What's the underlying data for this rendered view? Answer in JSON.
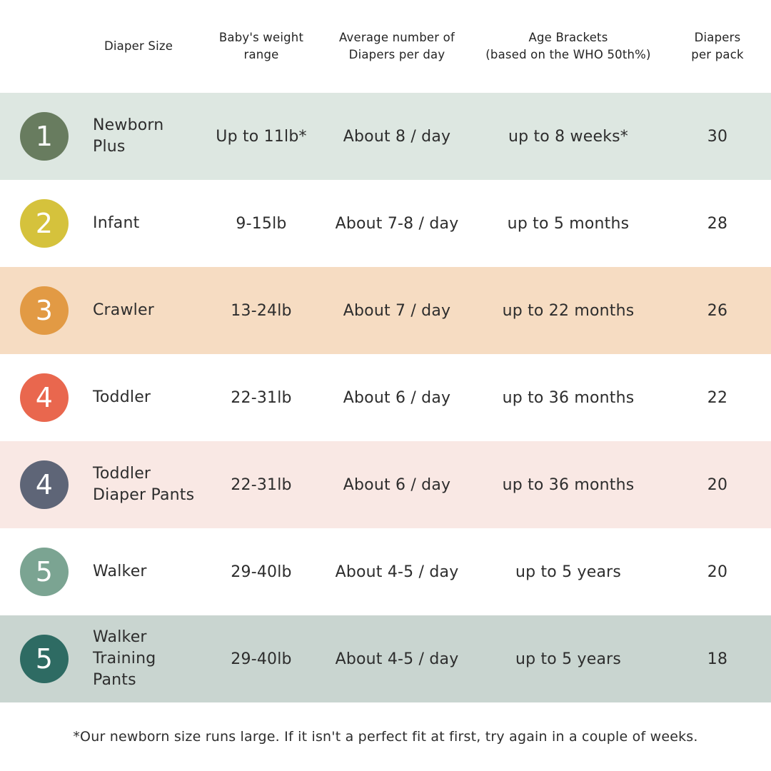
{
  "table": {
    "headers": [
      "Diaper Size",
      "Baby's weight\nrange",
      "Average number of\nDiapers per day",
      "Age Brackets\n(based on the WHO 50th%)",
      "Diapers\nper pack"
    ],
    "rows": [
      {
        "size": "1",
        "circle_color": "#687c5f",
        "row_bg": "#dde7e1",
        "name": "Newborn Plus",
        "weight": "Up to 11lb*",
        "per_day": "About 8 / day",
        "age": "up to 8 weeks*",
        "per_pack": "30"
      },
      {
        "size": "2",
        "circle_color": "#d5c23c",
        "row_bg": "#ffffff",
        "name": "Infant",
        "weight": "9-15lb",
        "per_day": "About 7-8 / day",
        "age": "up to 5 months",
        "per_pack": "28"
      },
      {
        "size": "3",
        "circle_color": "#e29a44",
        "row_bg": "#f6dcc2",
        "name": "Crawler",
        "weight": "13-24lb",
        "per_day": "About 7 / day",
        "age": "up to 22 months",
        "per_pack": "26"
      },
      {
        "size": "4",
        "circle_color": "#e9674e",
        "row_bg": "#ffffff",
        "name": "Toddler",
        "weight": "22-31lb",
        "per_day": "About 6 / day",
        "age": "up to 36 months",
        "per_pack": "22"
      },
      {
        "size": "4",
        "circle_color": "#5e6577",
        "row_bg": "#f9e8e4",
        "name": "Toddler Diaper Pants",
        "weight": "22-31lb",
        "per_day": "About 6 / day",
        "age": "up to 36 months",
        "per_pack": "20"
      },
      {
        "size": "5",
        "circle_color": "#7ba492",
        "row_bg": "#ffffff",
        "name": "Walker",
        "weight": "29-40lb",
        "per_day": "About 4-5 / day",
        "age": "up to 5 years",
        "per_pack": "20"
      },
      {
        "size": "5",
        "circle_color": "#2e6b63",
        "row_bg": "#c9d5d0",
        "name": "Walker Training Pants",
        "weight": "29-40lb",
        "per_day": "About 4-5 / day",
        "age": "up to 5 years",
        "per_pack": "18"
      }
    ]
  },
  "footnote": "*Our newborn size runs large. If it isn't a perfect fit at first, try again in a couple of weeks."
}
